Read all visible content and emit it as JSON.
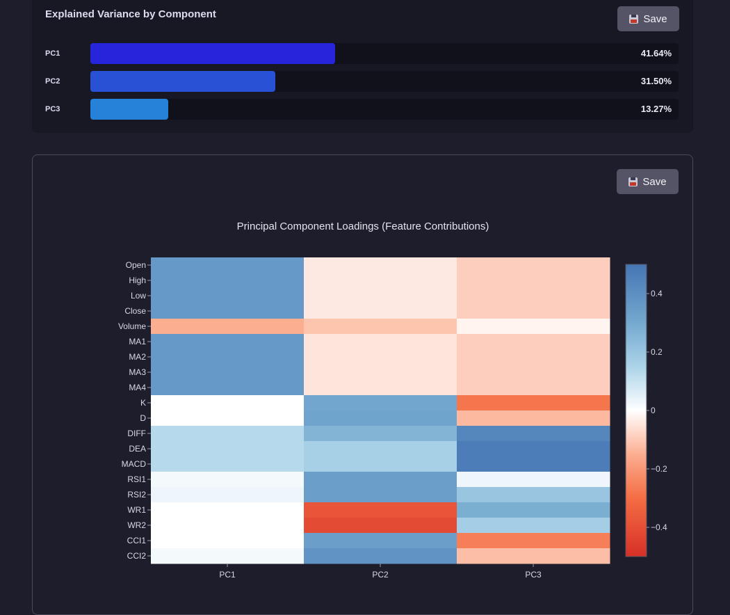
{
  "variance_card": {
    "title": "Explained Variance by Component",
    "save_label": "Save",
    "bars": [
      {
        "label": "PC1",
        "value": 41.64,
        "display": "41.64%",
        "color": "#2725dc"
      },
      {
        "label": "PC2",
        "value": 31.5,
        "display": "31.50%",
        "color": "#2951d6"
      },
      {
        "label": "PC3",
        "value": 13.27,
        "display": "13.27%",
        "color": "#2681d9"
      }
    ],
    "scale_max": 100
  },
  "heatmap_card": {
    "save_label": "Save"
  },
  "chart_data": {
    "type": "heatmap",
    "title": "Principal Component Loadings (Feature Contributions)",
    "x": [
      "PC1",
      "PC2",
      "PC3"
    ],
    "y": [
      "Open",
      "High",
      "Low",
      "Close",
      "Volume",
      "MA1",
      "MA2",
      "MA3",
      "MA4",
      "K",
      "D",
      "DIFF",
      "DEA",
      "MACD",
      "RSI1",
      "RSI2",
      "WR1",
      "WR2",
      "CCI1",
      "CCI2"
    ],
    "z": [
      [
        0.36,
        -0.04,
        -0.09
      ],
      [
        0.36,
        -0.04,
        -0.09
      ],
      [
        0.36,
        -0.04,
        -0.09
      ],
      [
        0.36,
        -0.04,
        -0.09
      ],
      [
        -0.15,
        -0.11,
        -0.02
      ],
      [
        0.36,
        -0.05,
        -0.09
      ],
      [
        0.36,
        -0.05,
        -0.09
      ],
      [
        0.36,
        -0.05,
        -0.09
      ],
      [
        0.36,
        -0.05,
        -0.09
      ],
      [
        0.0,
        0.31,
        -0.28
      ],
      [
        0.0,
        0.32,
        -0.13
      ],
      [
        0.13,
        0.26,
        0.43
      ],
      [
        0.13,
        0.16,
        0.47
      ],
      [
        0.13,
        0.16,
        0.47
      ],
      [
        0.02,
        0.34,
        0.03
      ],
      [
        0.03,
        0.34,
        0.2
      ],
      [
        0.0,
        -0.38,
        0.28
      ],
      [
        0.0,
        -0.41,
        0.17
      ],
      [
        0.0,
        0.34,
        -0.26
      ],
      [
        0.02,
        0.38,
        -0.12
      ]
    ],
    "zmin": -0.5,
    "zmax": 0.5,
    "colorbar_ticks": [
      0.4,
      0.2,
      0,
      -0.2,
      -0.4
    ],
    "colorbar_tick_labels": [
      "0.4",
      "0.2",
      "0",
      "−0.2",
      "−0.4"
    ],
    "colorscale": "RdBu"
  }
}
